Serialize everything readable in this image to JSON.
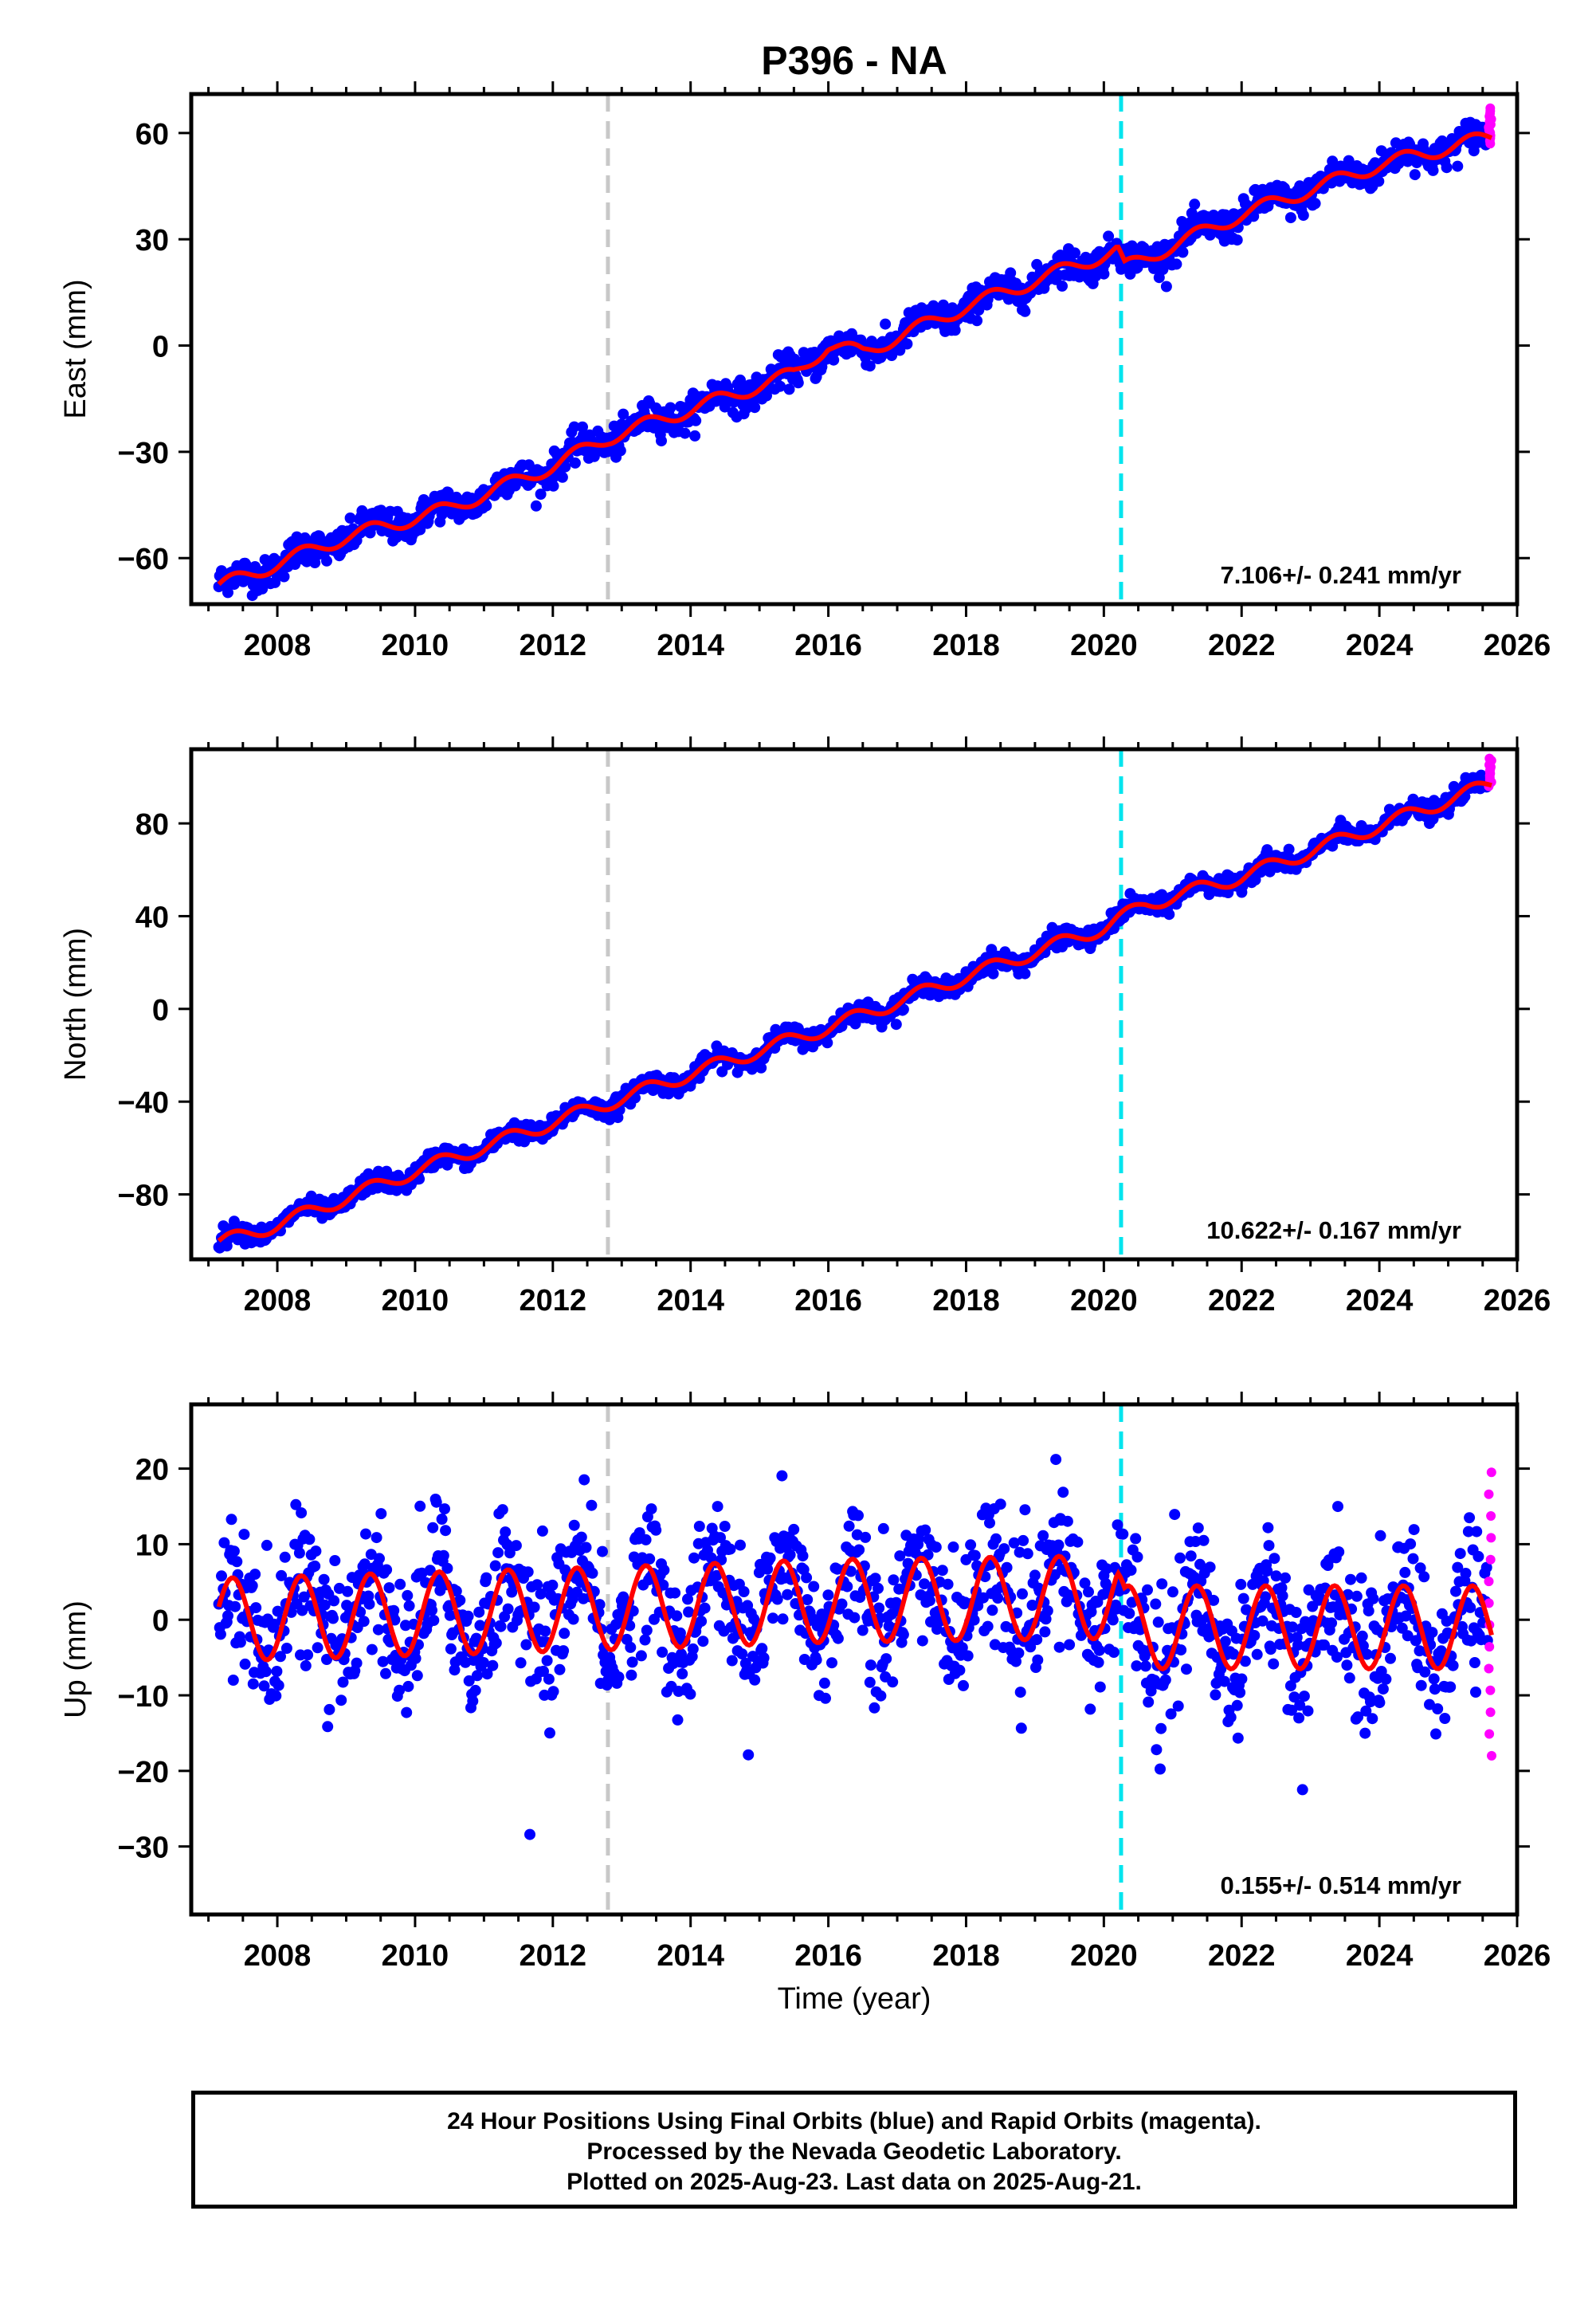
{
  "title": "P396 - NA",
  "xlabel": "Time (year)",
  "footer": {
    "line1": "24 Hour Positions Using Final Orbits (blue) and Rapid Orbits (magenta).",
    "line2": "Processed by the Nevada Geodetic Laboratory.",
    "line3": "Plotted on 2025-Aug-23. Last data on 2025-Aug-21."
  },
  "colors": {
    "final_orbits": "#0000ff",
    "rapid_orbits": "#ff00ff",
    "model_fit": "#ff0000",
    "event_gray": "#c8c8c8",
    "event_cyan": "#00e5ee"
  },
  "chart_data": [
    {
      "type": "scatter",
      "panel": "east",
      "ylabel": "East (mm)",
      "xlim": [
        2006.75,
        2026
      ],
      "ylim": [
        -73,
        71
      ],
      "xticks": [
        2008,
        2010,
        2012,
        2014,
        2016,
        2018,
        2020,
        2022,
        2024,
        2026
      ],
      "yticks": [
        -60,
        -30,
        0,
        30,
        60
      ],
      "rate_text": "7.106+/- 0.241 mm/yr",
      "event_lines": [
        {
          "x": 2012.8,
          "color": "gray"
        },
        {
          "x": 2020.25,
          "color": "cyan"
        }
      ],
      "data_span": [
        2007.15,
        2025.63
      ],
      "final_orbits_trend": [
        [
          2007.15,
          -68
        ],
        [
          2009.0,
          -54
        ],
        [
          2010.5,
          -46
        ],
        [
          2012.0,
          -34
        ],
        [
          2012.8,
          -26
        ],
        [
          2014.0,
          -18
        ],
        [
          2015.5,
          -8
        ],
        [
          2016.0,
          0
        ],
        [
          2016.5,
          -2
        ],
        [
          2018.0,
          11
        ],
        [
          2020.2,
          27
        ],
        [
          2020.3,
          22
        ],
        [
          2022.0,
          37
        ],
        [
          2024.0,
          51
        ],
        [
          2025.63,
          59
        ]
      ],
      "rapid_orbits_range": [
        57,
        67
      ],
      "annual_amplitude": 2.0,
      "noise_sd": 2.2
    },
    {
      "type": "scatter",
      "panel": "north",
      "ylabel": "North (mm)",
      "xlim": [
        2006.75,
        2026
      ],
      "ylim": [
        -108,
        112
      ],
      "xticks": [
        2008,
        2010,
        2012,
        2014,
        2016,
        2018,
        2020,
        2022,
        2024,
        2026
      ],
      "yticks": [
        -80,
        -40,
        0,
        40,
        80
      ],
      "rate_text": "10.622+/- 0.167 mm/yr",
      "event_lines": [
        {
          "x": 2012.8,
          "color": "gray"
        },
        {
          "x": 2020.25,
          "color": "cyan"
        }
      ],
      "data_span": [
        2007.15,
        2025.63
      ],
      "final_orbits_trend": [
        [
          2007.15,
          -101
        ],
        [
          2008.0,
          -93
        ],
        [
          2010.0,
          -70
        ],
        [
          2012.0,
          -49
        ],
        [
          2014.0,
          -28
        ],
        [
          2016.0,
          -8
        ],
        [
          2018.0,
          14
        ],
        [
          2020.0,
          35
        ],
        [
          2020.6,
          45
        ],
        [
          2022.0,
          57
        ],
        [
          2024.0,
          79
        ],
        [
          2025.63,
          97
        ]
      ],
      "rapid_orbits_range": [
        96,
        108
      ],
      "annual_amplitude": 3.0,
      "noise_sd": 2.0
    },
    {
      "type": "scatter",
      "panel": "up",
      "ylabel": "Up (mm)",
      "xlim": [
        2006.75,
        2026
      ],
      "ylim": [
        -39,
        28.5
      ],
      "xticks": [
        2008,
        2010,
        2012,
        2014,
        2016,
        2018,
        2020,
        2022,
        2024,
        2026
      ],
      "yticks": [
        -30,
        -20,
        -10,
        0,
        10,
        20
      ],
      "rate_text": "0.155+/- 0.514 mm/yr",
      "event_lines": [
        {
          "x": 2012.8,
          "color": "gray"
        },
        {
          "x": 2020.25,
          "color": "cyan"
        }
      ],
      "data_span": [
        2007.15,
        2025.63
      ],
      "final_orbits_trend": [
        [
          2007.15,
          0
        ],
        [
          2012.8,
          1.5
        ],
        [
          2016.0,
          2.5
        ],
        [
          2020.2,
          3.0
        ],
        [
          2020.3,
          -1
        ],
        [
          2025.63,
          -1
        ]
      ],
      "rapid_orbits_range": [
        -18,
        19.5
      ],
      "annual_amplitude": 5.5,
      "noise_sd": 4.5
    }
  ]
}
